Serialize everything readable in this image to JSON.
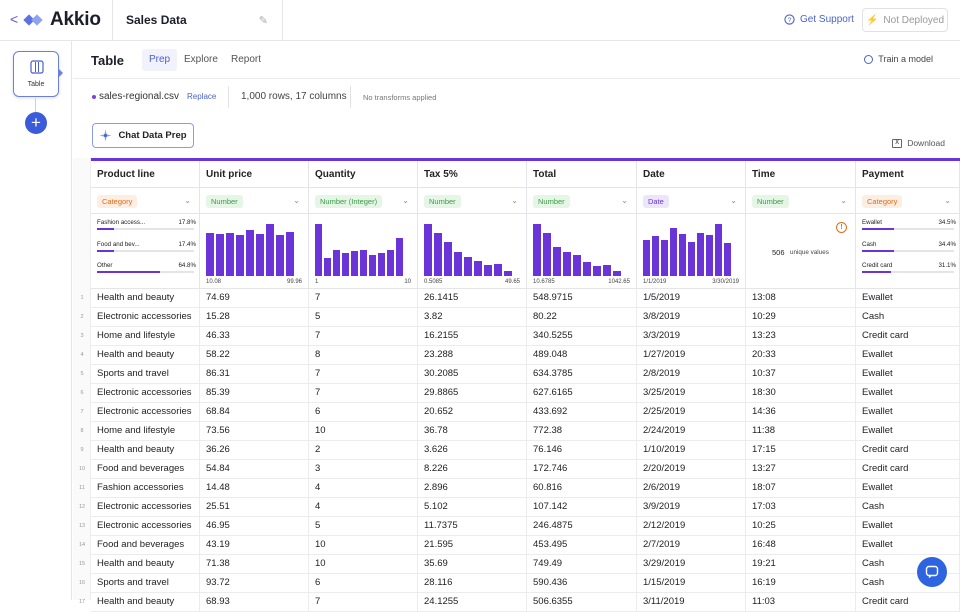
{
  "app": {
    "logo_text": "Akkio",
    "back_label": "<",
    "project_name": "Sales Data"
  },
  "header_actions": {
    "support": "Get Support",
    "deploy": "Not Deployed"
  },
  "sidebar": {
    "table_label": "Table",
    "add_label": "+"
  },
  "page": {
    "title": "Table",
    "tabs": [
      {
        "label": "Prep"
      },
      {
        "label": "Explore"
      },
      {
        "label": "Report"
      }
    ],
    "train": "Train a model"
  },
  "file": {
    "name": "sales-regional.csv",
    "replace": "Replace",
    "rows_cols": "1,000 rows, 17 columns",
    "transforms": "No transforms applied"
  },
  "toolbar": {
    "chat": "Chat Data Prep",
    "download": "Download"
  },
  "colors": {
    "accent": "#6b34d8",
    "link": "#4a63c9",
    "category": "#e46b16",
    "number": "#3c9a46"
  },
  "columns": [
    {
      "name": "Product line",
      "type": "Category",
      "kind": "cat",
      "stats": [
        {
          "label": "Fashion access...",
          "pct": "17.8%",
          "frac": 0.178
        },
        {
          "label": "Food and bev...",
          "pct": "17.4%",
          "frac": 0.174
        },
        {
          "label": "Other",
          "pct": "64.8%",
          "frac": 0.648
        }
      ]
    },
    {
      "name": "Unit price",
      "type": "Number",
      "kind": "num",
      "min": "10.08",
      "max": "99.96",
      "hist": [
        0.82,
        0.8,
        0.82,
        0.78,
        0.88,
        0.8,
        1.0,
        0.78,
        0.84
      ]
    },
    {
      "name": "Quantity",
      "type": "Number (Integer)",
      "kind": "num",
      "min": "1",
      "max": "10",
      "hist": [
        1.0,
        0.35,
        0.5,
        0.45,
        0.48,
        0.5,
        0.4,
        0.44,
        0.5,
        0.74
      ]
    },
    {
      "name": "Tax 5%",
      "type": "Number",
      "kind": "num",
      "min": "0.5085",
      "max": "49.65",
      "hist": [
        1.0,
        0.82,
        0.65,
        0.46,
        0.36,
        0.28,
        0.22,
        0.24,
        0.1
      ]
    },
    {
      "name": "Total",
      "type": "Number",
      "kind": "num",
      "min": "10.6785",
      "max": "1042.65",
      "hist": [
        1.0,
        0.82,
        0.55,
        0.46,
        0.4,
        0.26,
        0.2,
        0.22,
        0.1
      ]
    },
    {
      "name": "Date",
      "type": "Date",
      "kind": "date",
      "min": "1/1/2019",
      "max": "3/30/2019",
      "hist": [
        0.7,
        0.76,
        0.7,
        0.92,
        0.8,
        0.66,
        0.82,
        0.78,
        1.0,
        0.64
      ]
    },
    {
      "name": "Time",
      "type": "Number",
      "kind": "num",
      "unique": "506",
      "unique_label": "unique values"
    },
    {
      "name": "Payment",
      "type": "Category",
      "kind": "cat",
      "stats": [
        {
          "label": "Ewallet",
          "pct": "34.5%",
          "frac": 0.345
        },
        {
          "label": "Cash",
          "pct": "34.4%",
          "frac": 0.344
        },
        {
          "label": "Credit card",
          "pct": "31.1%",
          "frac": 0.311
        }
      ]
    }
  ],
  "rows": [
    [
      "Health and beauty",
      "74.69",
      "7",
      "26.1415",
      "548.9715",
      "1/5/2019",
      "13:08",
      "Ewallet"
    ],
    [
      "Electronic accessories",
      "15.28",
      "5",
      "3.82",
      "80.22",
      "3/8/2019",
      "10:29",
      "Cash"
    ],
    [
      "Home and lifestyle",
      "46.33",
      "7",
      "16.2155",
      "340.5255",
      "3/3/2019",
      "13:23",
      "Credit card"
    ],
    [
      "Health and beauty",
      "58.22",
      "8",
      "23.288",
      "489.048",
      "1/27/2019",
      "20:33",
      "Ewallet"
    ],
    [
      "Sports and travel",
      "86.31",
      "7",
      "30.2085",
      "634.3785",
      "2/8/2019",
      "10:37",
      "Ewallet"
    ],
    [
      "Electronic accessories",
      "85.39",
      "7",
      "29.8865",
      "627.6165",
      "3/25/2019",
      "18:30",
      "Ewallet"
    ],
    [
      "Electronic accessories",
      "68.84",
      "6",
      "20.652",
      "433.692",
      "2/25/2019",
      "14:36",
      "Ewallet"
    ],
    [
      "Home and lifestyle",
      "73.56",
      "10",
      "36.78",
      "772.38",
      "2/24/2019",
      "11:38",
      "Ewallet"
    ],
    [
      "Health and beauty",
      "36.26",
      "2",
      "3.626",
      "76.146",
      "1/10/2019",
      "17:15",
      "Credit card"
    ],
    [
      "Food and beverages",
      "54.84",
      "3",
      "8.226",
      "172.746",
      "2/20/2019",
      "13:27",
      "Credit card"
    ],
    [
      "Fashion accessories",
      "14.48",
      "4",
      "2.896",
      "60.816",
      "2/6/2019",
      "18:07",
      "Ewallet"
    ],
    [
      "Electronic accessories",
      "25.51",
      "4",
      "5.102",
      "107.142",
      "3/9/2019",
      "17:03",
      "Cash"
    ],
    [
      "Electronic accessories",
      "46.95",
      "5",
      "11.7375",
      "246.4875",
      "2/12/2019",
      "10:25",
      "Ewallet"
    ],
    [
      "Food and beverages",
      "43.19",
      "10",
      "21.595",
      "453.495",
      "2/7/2019",
      "16:48",
      "Ewallet"
    ],
    [
      "Health and beauty",
      "71.38",
      "10",
      "35.69",
      "749.49",
      "3/29/2019",
      "19:21",
      "Cash"
    ],
    [
      "Sports and travel",
      "93.72",
      "6",
      "28.116",
      "590.436",
      "1/15/2019",
      "16:19",
      "Cash"
    ],
    [
      "Health and beauty",
      "68.93",
      "7",
      "24.1255",
      "506.6355",
      "3/11/2019",
      "11:03",
      "Credit card"
    ]
  ]
}
